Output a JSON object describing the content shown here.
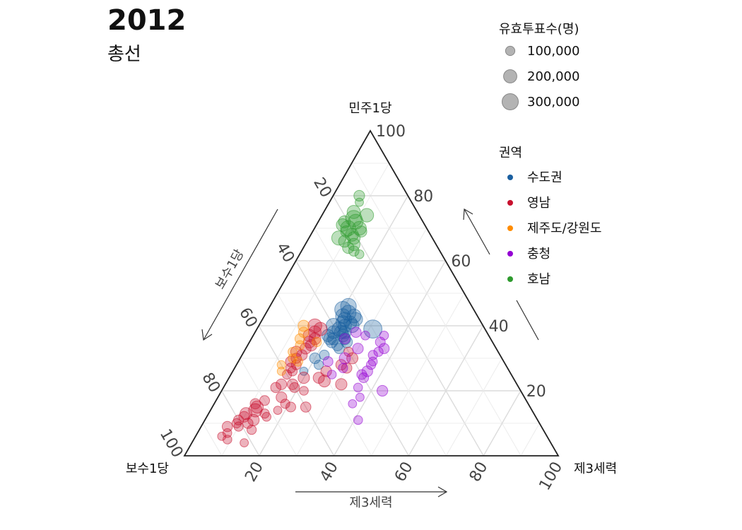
{
  "header": {
    "year": "2012",
    "subtitle": "총선"
  },
  "chart_data": {
    "type": "scatter",
    "subtype": "ternary-bubble",
    "vertices": {
      "top": "민주1당",
      "left": "보수1당",
      "right": "제3세력"
    },
    "axis_titles": {
      "left": "보수1당",
      "bottom": "제3세력"
    },
    "ticks": [
      20,
      40,
      60,
      80,
      100
    ],
    "grid": true,
    "size_legend": {
      "title": "유효투표수(명)",
      "entries": [
        {
          "label": "100,000",
          "value": 100000
        },
        {
          "label": "200,000",
          "value": 200000
        },
        {
          "label": "300,000",
          "value": 300000
        }
      ]
    },
    "color_legend": {
      "title": "권역",
      "entries": [
        {
          "label": "수도권",
          "color": "#1a5fa0"
        },
        {
          "label": "영남",
          "color": "#c8102e"
        },
        {
          "label": "제주도/강원도",
          "color": "#ff8c00"
        },
        {
          "label": "충청",
          "color": "#9400d3"
        },
        {
          "label": "호남",
          "color": "#2e9a2e"
        }
      ]
    },
    "value_fields": [
      "민주1당 %",
      "제3세력 %",
      "유효투표수"
    ],
    "series": [
      {
        "name": "호남",
        "color": "#2e9a2e",
        "points": [
          [
            80,
            7,
            130000
          ],
          [
            78,
            8,
            80000
          ],
          [
            75,
            8,
            200000
          ],
          [
            73,
            9,
            300000
          ],
          [
            72,
            10,
            250000
          ],
          [
            71,
            7,
            180000
          ],
          [
            70,
            9,
            260000
          ],
          [
            70,
            12,
            220000
          ],
          [
            69,
            9,
            150000
          ],
          [
            68,
            11,
            190000
          ],
          [
            67,
            8,
            230000
          ],
          [
            67,
            12,
            180000
          ],
          [
            66,
            10,
            160000
          ],
          [
            65,
            13,
            170000
          ],
          [
            64,
            12,
            150000
          ],
          [
            63,
            14,
            120000
          ],
          [
            62,
            16,
            90000
          ],
          [
            74,
            12,
            210000
          ],
          [
            72,
            7,
            160000
          ],
          [
            69,
            13,
            140000
          ]
        ]
      },
      {
        "name": "수도권",
        "color": "#1a5fa0",
        "points": [
          [
            45,
            20,
            300000
          ],
          [
            46,
            21,
            280000
          ],
          [
            44,
            22,
            260000
          ],
          [
            43,
            21,
            240000
          ],
          [
            42,
            22,
            220000
          ],
          [
            41,
            22,
            210000
          ],
          [
            40,
            20,
            250000
          ],
          [
            39,
            22,
            230000
          ],
          [
            38,
            23,
            200000
          ],
          [
            37,
            24,
            180000
          ],
          [
            36,
            22,
            160000
          ],
          [
            35,
            22,
            150000
          ],
          [
            34,
            24,
            140000
          ],
          [
            33,
            25,
            120000
          ],
          [
            42,
            25,
            200000
          ],
          [
            41,
            24,
            190000
          ],
          [
            37,
            20,
            170000
          ],
          [
            36,
            25,
            160000
          ],
          [
            31,
            22,
            110000
          ],
          [
            28,
            22,
            100000
          ],
          [
            26,
            19,
            80000
          ],
          [
            30,
            20,
            130000
          ],
          [
            43,
            24,
            220000
          ],
          [
            40,
            25,
            210000
          ],
          [
            38,
            21,
            190000
          ],
          [
            35,
            26,
            150000
          ],
          [
            39,
            31,
            380000
          ],
          [
            38,
            24,
            180000
          ],
          [
            40,
            23,
            200000
          ],
          [
            36,
            21,
            170000
          ]
        ]
      },
      {
        "name": "영남",
        "color": "#c8102e",
        "points": [
          [
            40,
            15,
            220000
          ],
          [
            39,
            17,
            200000
          ],
          [
            38,
            16,
            180000
          ],
          [
            37,
            15,
            170000
          ],
          [
            36,
            17,
            160000
          ],
          [
            35,
            16,
            160000
          ],
          [
            34,
            17,
            150000
          ],
          [
            33,
            16,
            140000
          ],
          [
            32,
            14,
            140000
          ],
          [
            31,
            16,
            130000
          ],
          [
            30,
            15,
            120000
          ],
          [
            29,
            14,
            120000
          ],
          [
            28,
            16,
            110000
          ],
          [
            27,
            15,
            110000
          ],
          [
            26,
            16,
            100000
          ],
          [
            25,
            15,
            100000
          ],
          [
            24,
            20,
            150000
          ],
          [
            22,
            18,
            130000
          ],
          [
            22,
            15,
            130000
          ],
          [
            21,
            14,
            120000
          ],
          [
            21,
            19,
            110000
          ],
          [
            17,
            13,
            110000
          ],
          [
            16,
            11,
            120000
          ],
          [
            15,
            12,
            170000
          ],
          [
            14,
            12,
            200000
          ],
          [
            13,
            10,
            160000
          ],
          [
            12,
            10,
            130000
          ],
          [
            11,
            9,
            110000
          ],
          [
            10,
            9,
            100000
          ],
          [
            9,
            10,
            100000
          ],
          [
            13,
            15,
            100000
          ],
          [
            10,
            12,
            120000
          ],
          [
            8,
            14,
            100000
          ],
          [
            7,
            8,
            90000
          ],
          [
            6,
            7,
            80000
          ],
          [
            5,
            9,
            90000
          ],
          [
            4,
            14,
            80000
          ],
          [
            12,
            16,
            90000
          ],
          [
            14,
            18,
            80000
          ],
          [
            15,
            21,
            110000
          ],
          [
            22,
            31,
            150000
          ],
          [
            23,
            26,
            160000
          ],
          [
            24,
            24,
            140000
          ],
          [
            26,
            25,
            130000
          ],
          [
            28,
            28,
            130000
          ],
          [
            30,
            30,
            140000
          ],
          [
            15,
            25,
            120000
          ],
          [
            16,
            19,
            100000
          ],
          [
            18,
            17,
            130000
          ],
          [
            20,
            22,
            90000
          ],
          [
            32,
            28,
            100000
          ],
          [
            27,
            30,
            120000
          ],
          [
            11,
            13,
            150000
          ],
          [
            9,
            7,
            120000
          ]
        ]
      },
      {
        "name": "제주도/강원도",
        "color": "#ff8c00",
        "points": [
          [
            40,
            12,
            140000
          ],
          [
            38,
            13,
            120000
          ],
          [
            36,
            13,
            110000
          ],
          [
            34,
            14,
            100000
          ],
          [
            32,
            13,
            90000
          ],
          [
            30,
            14,
            90000
          ],
          [
            28,
            12,
            80000
          ],
          [
            26,
            13,
            80000
          ],
          [
            29,
            16,
            100000
          ],
          [
            35,
            18,
            100000
          ]
        ]
      },
      {
        "name": "충청",
        "color": "#9400d3",
        "points": [
          [
            38,
            27,
            120000
          ],
          [
            37,
            35,
            90000
          ],
          [
            35,
            35,
            110000
          ],
          [
            33,
            37,
            120000
          ],
          [
            32,
            36,
            100000
          ],
          [
            31,
            35,
            100000
          ],
          [
            29,
            36,
            90000
          ],
          [
            28,
            36,
            100000
          ],
          [
            26,
            36,
            130000
          ],
          [
            25,
            35,
            110000
          ],
          [
            24,
            36,
            110000
          ],
          [
            21,
            36,
            90000
          ],
          [
            20,
            43,
            130000
          ],
          [
            18,
            38,
            80000
          ],
          [
            16,
            37,
            80000
          ],
          [
            11,
            41,
            90000
          ],
          [
            33,
            30,
            130000
          ],
          [
            30,
            28,
            140000
          ],
          [
            36,
            25,
            120000
          ],
          [
            37,
            30,
            90000
          ],
          [
            27,
            29,
            100000
          ],
          [
            25,
            27,
            90000
          ],
          [
            29,
            24,
            110000
          ]
        ]
      }
    ]
  }
}
